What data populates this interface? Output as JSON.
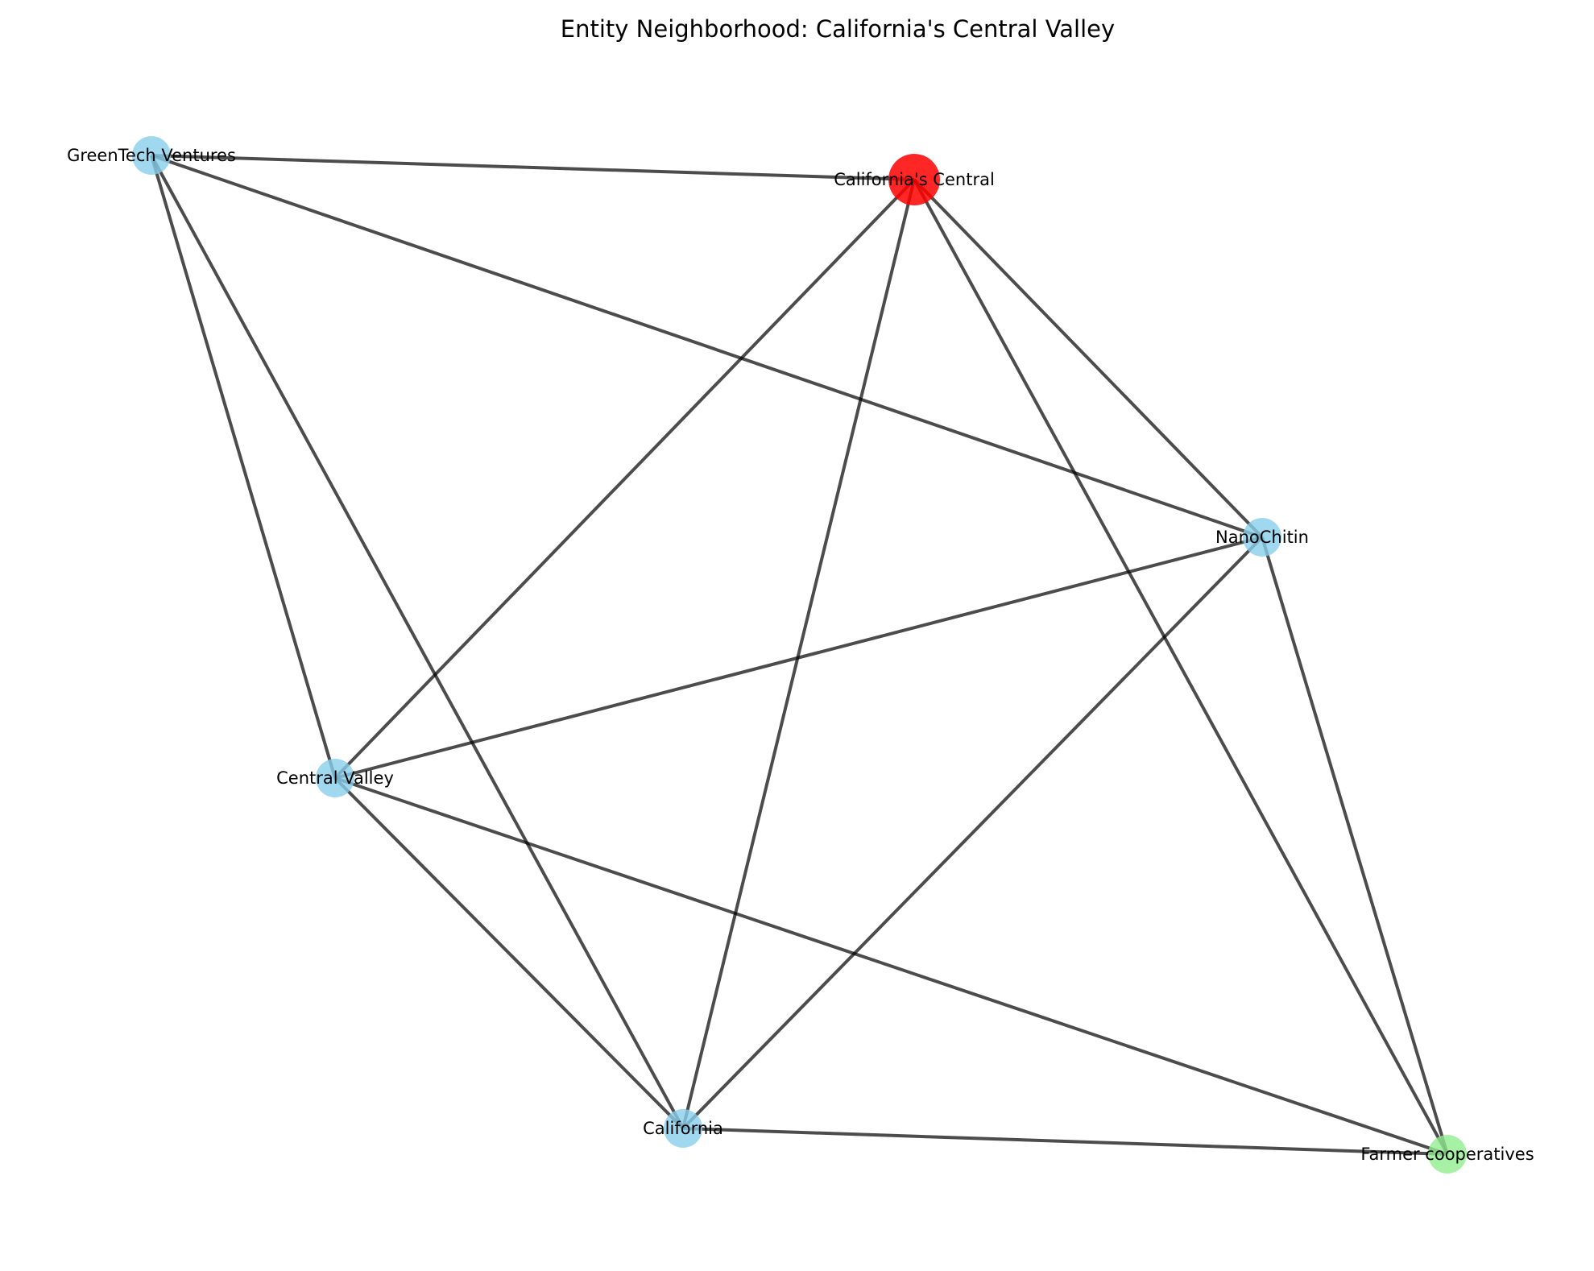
{
  "title": "Entity Neighborhood: California's Central Valley",
  "colors": {
    "center": "#ff0000",
    "entity": "#87ceeb",
    "group": "#90ee90",
    "edge": "#000000"
  },
  "nodes": [
    {
      "id": "greentech",
      "label": "GreenTech Ventures",
      "kind": "entity"
    },
    {
      "id": "center",
      "label": "California's Central",
      "kind": "center"
    },
    {
      "id": "nanochitin",
      "label": "NanoChitin",
      "kind": "entity"
    },
    {
      "id": "centralvalley",
      "label": "Central Valley",
      "kind": "entity"
    },
    {
      "id": "california",
      "label": "California",
      "kind": "entity"
    },
    {
      "id": "farmer",
      "label": "Farmer cooperatives",
      "kind": "group"
    }
  ],
  "edges": [
    [
      "greentech",
      "center"
    ],
    [
      "greentech",
      "nanochitin"
    ],
    [
      "greentech",
      "centralvalley"
    ],
    [
      "greentech",
      "california"
    ],
    [
      "center",
      "centralvalley"
    ],
    [
      "center",
      "california"
    ],
    [
      "center",
      "nanochitin"
    ],
    [
      "center",
      "farmer"
    ],
    [
      "nanochitin",
      "centralvalley"
    ],
    [
      "nanochitin",
      "california"
    ],
    [
      "nanochitin",
      "farmer"
    ],
    [
      "centralvalley",
      "california"
    ],
    [
      "centralvalley",
      "farmer"
    ],
    [
      "california",
      "farmer"
    ]
  ]
}
